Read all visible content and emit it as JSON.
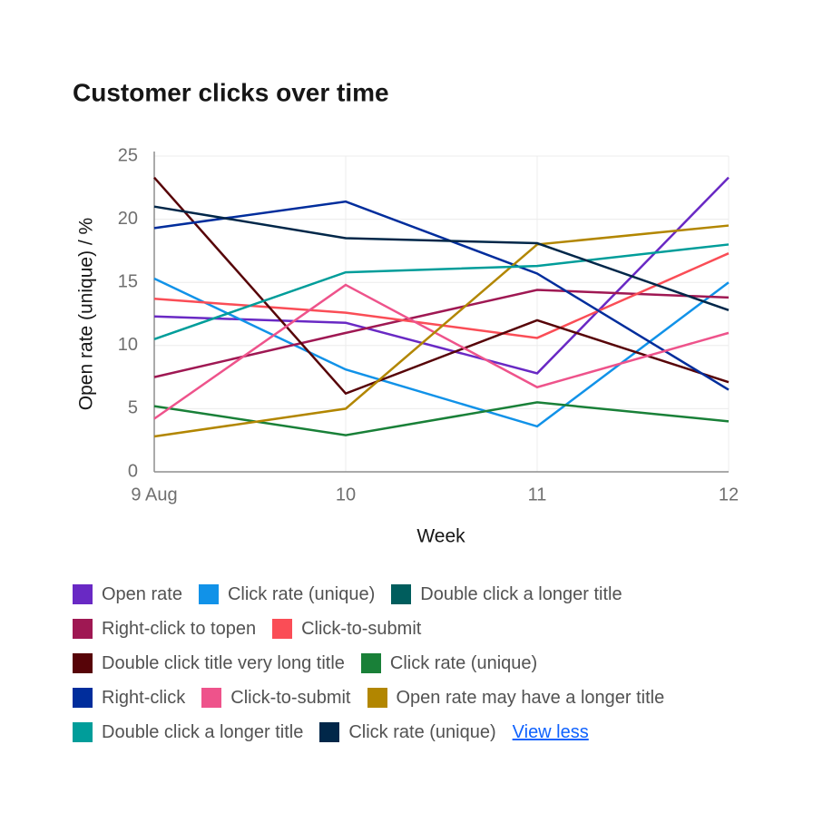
{
  "chart_data": {
    "type": "line",
    "title": "Customer clicks over time",
    "x_label": "Week",
    "y_label": "Open rate (unique) / %",
    "categories": [
      "9 Aug",
      "10",
      "11",
      "12"
    ],
    "ylim": [
      0,
      25
    ],
    "yticks": [
      0,
      5,
      10,
      15,
      20,
      25
    ],
    "grid": true,
    "series": [
      {
        "name": "Open rate",
        "color": "#6929c4",
        "values": [
          12.3,
          11.8,
          7.8,
          23.3
        ]
      },
      {
        "name": "Click rate (unique)",
        "color": "#1192e8",
        "values": [
          15.3,
          8.1,
          3.6,
          15
        ]
      },
      {
        "name": "Double click a longer title",
        "color": "#005d5d",
        "values": [
          null,
          null,
          null,
          null
        ]
      },
      {
        "name": "Right-click to topen",
        "color": "#9f1853",
        "values": [
          7.5,
          11,
          14.4,
          13.8
        ]
      },
      {
        "name": "Click-to-submit",
        "color": "#fa4d56",
        "values": [
          13.7,
          12.6,
          10.6,
          17.3
        ]
      },
      {
        "name": "Double click title very long title",
        "color": "#570408",
        "values": [
          23.3,
          6.2,
          12,
          7.1
        ]
      },
      {
        "name": "Click rate (unique)",
        "color": "#198038",
        "values": [
          5.2,
          2.9,
          5.5,
          4
        ]
      },
      {
        "name": "Right-click",
        "color": "#002d9c",
        "values": [
          19.3,
          21.4,
          15.7,
          6.5
        ]
      },
      {
        "name": "Click-to-submit",
        "color": "#ee538b",
        "values": [
          4.2,
          14.8,
          6.7,
          11
        ]
      },
      {
        "name": "Open rate may have a longer title",
        "color": "#b28600",
        "values": [
          2.8,
          5,
          18,
          19.5
        ]
      },
      {
        "name": "Double click a longer title",
        "color": "#009d9a",
        "values": [
          10.5,
          15.8,
          16.3,
          18
        ]
      },
      {
        "name": "Click rate (unique)",
        "color": "#012749",
        "values": [
          21,
          18.5,
          18.1,
          12.8
        ]
      }
    ],
    "legend_toggle": "View less"
  }
}
